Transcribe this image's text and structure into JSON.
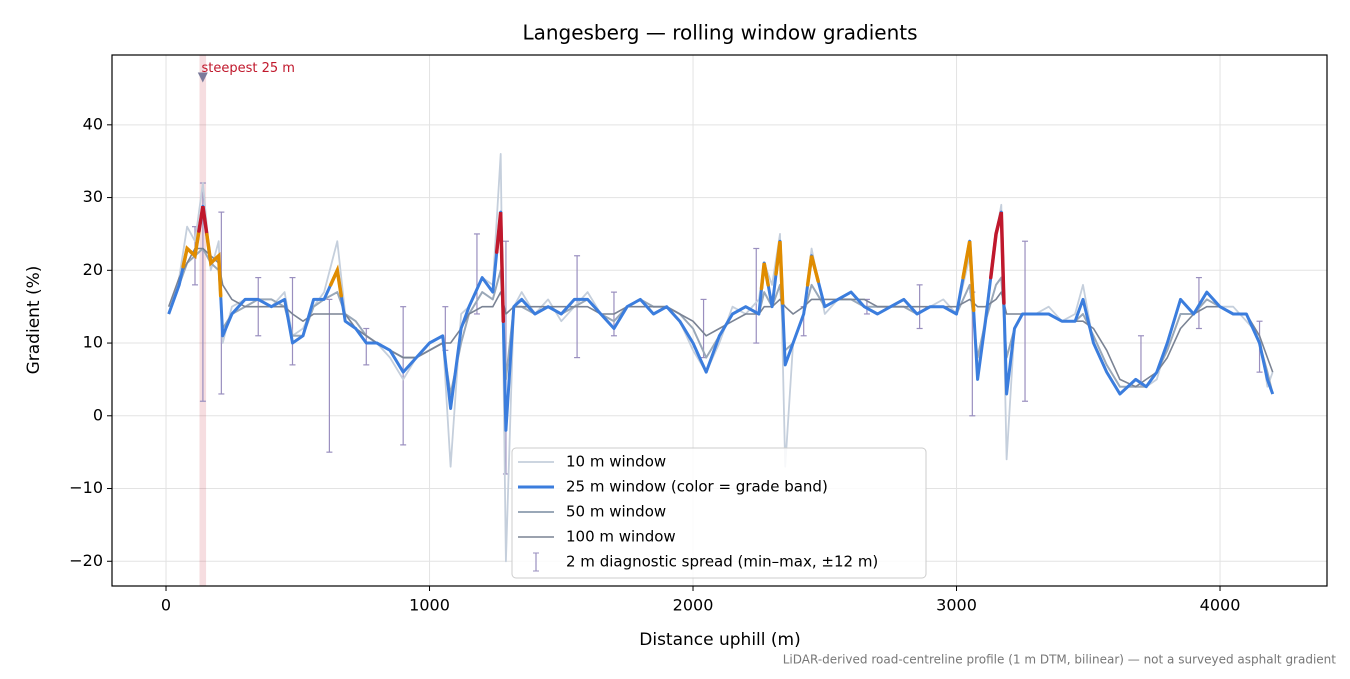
{
  "chart_data": {
    "type": "line",
    "title": "Langesberg — rolling window gradients",
    "x_label": "Distance uphill (m)",
    "y_label": "Gradient (%)",
    "footnote": "LiDAR-derived road-centreline profile (1 m DTM, bilinear) — not a surveyed asphalt gradient",
    "xlim": [
      -205,
      4406
    ],
    "ylim": [
      -23.4,
      49.6
    ],
    "xticks": [
      0,
      1000,
      2000,
      3000,
      4000
    ],
    "yticks": [
      {
        "value": -20,
        "label": "−20"
      },
      {
        "value": -10,
        "label": "−10"
      },
      0,
      10,
      20,
      30,
      40
    ],
    "grid": true,
    "legend_position": "lower center",
    "x": [
      10,
      50,
      80,
      110,
      140,
      170,
      200,
      215,
      250,
      300,
      350,
      400,
      450,
      480,
      520,
      560,
      600,
      650,
      680,
      720,
      760,
      800,
      850,
      900,
      950,
      1000,
      1050,
      1080,
      1120,
      1150,
      1200,
      1240,
      1270,
      1290,
      1320,
      1350,
      1400,
      1450,
      1500,
      1550,
      1600,
      1650,
      1700,
      1750,
      1800,
      1850,
      1900,
      1950,
      2000,
      2050,
      2100,
      2150,
      2200,
      2250,
      2270,
      2300,
      2330,
      2350,
      2380,
      2420,
      2450,
      2500,
      2550,
      2600,
      2650,
      2700,
      2750,
      2800,
      2850,
      2900,
      2950,
      3000,
      3050,
      3080,
      3110,
      3150,
      3170,
      3190,
      3220,
      3250,
      3300,
      3350,
      3400,
      3450,
      3480,
      3520,
      3570,
      3620,
      3680,
      3720,
      3760,
      3800,
      3850,
      3900,
      3950,
      4000,
      4050,
      4100,
      4150,
      4180,
      4200
    ],
    "series": [
      {
        "name": "10 m window",
        "color": "#c5cfdc",
        "width": 1.8,
        "values": [
          14,
          19,
          26,
          24,
          32,
          20,
          24,
          10,
          15,
          16,
          16,
          15,
          17,
          11,
          12,
          15,
          17,
          24,
          14,
          12,
          11,
          10,
          8,
          5,
          8,
          10,
          11,
          -7,
          14,
          15,
          19,
          18,
          36,
          -20,
          15,
          17,
          14,
          16,
          13,
          15,
          17,
          14,
          12,
          15,
          16,
          14,
          15,
          13,
          9,
          6,
          10,
          15,
          14,
          16,
          21,
          18,
          25,
          -7,
          10,
          14,
          23,
          14,
          16,
          17,
          15,
          14,
          15,
          16,
          14,
          15,
          16,
          14,
          22,
          6,
          14,
          25,
          29,
          -6,
          12,
          14,
          14,
          15,
          13,
          14,
          18,
          10,
          6,
          3,
          5,
          4,
          5,
          10,
          16,
          14,
          17,
          15,
          15,
          13,
          11,
          4,
          6
        ]
      },
      {
        "name": "25 m window (color = grade band)",
        "color": "#3b7ddd",
        "width": 3,
        "bands": [
          {
            "min": 20,
            "color": "#e08c00"
          },
          {
            "min": 25,
            "color": "#c0182c"
          }
        ],
        "values": [
          14,
          18,
          23,
          22,
          28.8,
          21,
          22,
          11,
          14,
          16,
          16,
          15,
          16,
          10,
          11,
          16,
          16,
          20,
          13,
          12,
          10,
          10,
          9,
          6,
          8,
          10,
          11,
          1,
          12,
          15,
          19,
          17,
          28,
          -2,
          15,
          16,
          14,
          15,
          14,
          16,
          16,
          14,
          12,
          15,
          16,
          14,
          15,
          13,
          10,
          6,
          11,
          14,
          15,
          14,
          21,
          15,
          24,
          7,
          10,
          14,
          22,
          15,
          16,
          17,
          15,
          14,
          15,
          16,
          14,
          15,
          15,
          14,
          24,
          5,
          13,
          25,
          28,
          3,
          12,
          14,
          14,
          14,
          13,
          13,
          16,
          10,
          6,
          3,
          5,
          4,
          6,
          10,
          16,
          14,
          17,
          15,
          14,
          14,
          10,
          5,
          3
        ]
      },
      {
        "name": "50 m window",
        "color": "#9aa8b8",
        "width": 2,
        "values": [
          14,
          18,
          21,
          22,
          23,
          21,
          20,
          12,
          14,
          15,
          16,
          16,
          15,
          11,
          11,
          15,
          16,
          17,
          14,
          13,
          11,
          10,
          9,
          8,
          8,
          9,
          10,
          3,
          10,
          14,
          17,
          16,
          20,
          5,
          15,
          15,
          14,
          15,
          14,
          15,
          16,
          14,
          13,
          15,
          16,
          15,
          15,
          14,
          12,
          8,
          11,
          14,
          15,
          14,
          17,
          15,
          18,
          9,
          10,
          14,
          18,
          15,
          16,
          16,
          15,
          15,
          15,
          15,
          14,
          15,
          15,
          14,
          18,
          8,
          13,
          18,
          19,
          8,
          12,
          14,
          14,
          14,
          13,
          13,
          14,
          11,
          7,
          4,
          4,
          4,
          6,
          9,
          14,
          14,
          16,
          15,
          14,
          14,
          10,
          6,
          3
        ]
      },
      {
        "name": "100 m window",
        "color": "#7a8394",
        "width": 1.6,
        "values": [
          15,
          19,
          21,
          23,
          23,
          22,
          21,
          18,
          16,
          15,
          15,
          15,
          15,
          14,
          13,
          14,
          14,
          14,
          14,
          12,
          11,
          10,
          9,
          8,
          8,
          9,
          10,
          10,
          12,
          14,
          15,
          15,
          17,
          14,
          15,
          15,
          15,
          15,
          15,
          15,
          15,
          14,
          14,
          15,
          15,
          15,
          15,
          14,
          13,
          11,
          12,
          13,
          14,
          14,
          15,
          15,
          16,
          15,
          14,
          15,
          16,
          16,
          16,
          16,
          16,
          15,
          15,
          15,
          15,
          15,
          15,
          15,
          16,
          15,
          15,
          16,
          17,
          14,
          14,
          14,
          14,
          14,
          13,
          13,
          13,
          12,
          9,
          5,
          4,
          5,
          6,
          8,
          12,
          14,
          15,
          15,
          14,
          14,
          11,
          8,
          6
        ]
      }
    ],
    "spread": {
      "name": "2 m diagnostic spread (min–max, ±12 m)",
      "color": "#9a8fbf",
      "x": [
        110,
        140,
        210,
        350,
        480,
        620,
        760,
        900,
        1060,
        1180,
        1290,
        1560,
        1700,
        2040,
        2240,
        2420,
        2660,
        2860,
        3060,
        3260,
        3700,
        3920,
        4150
      ],
      "low": [
        18,
        2,
        3,
        11,
        7,
        -5,
        7,
        -4,
        9,
        14,
        -8,
        8,
        11,
        8,
        10,
        11,
        14,
        12,
        0,
        2,
        4,
        12,
        6
      ],
      "high": [
        26,
        32,
        28,
        19,
        19,
        16,
        12,
        15,
        15,
        25,
        24,
        22,
        17,
        16,
        23,
        15,
        16,
        18,
        17,
        24,
        11,
        19,
        13
      ]
    },
    "steepest": {
      "start": 127,
      "end": 152,
      "marker": 46.5,
      "label": "steepest 25 m",
      "color": "#c0182c"
    }
  }
}
